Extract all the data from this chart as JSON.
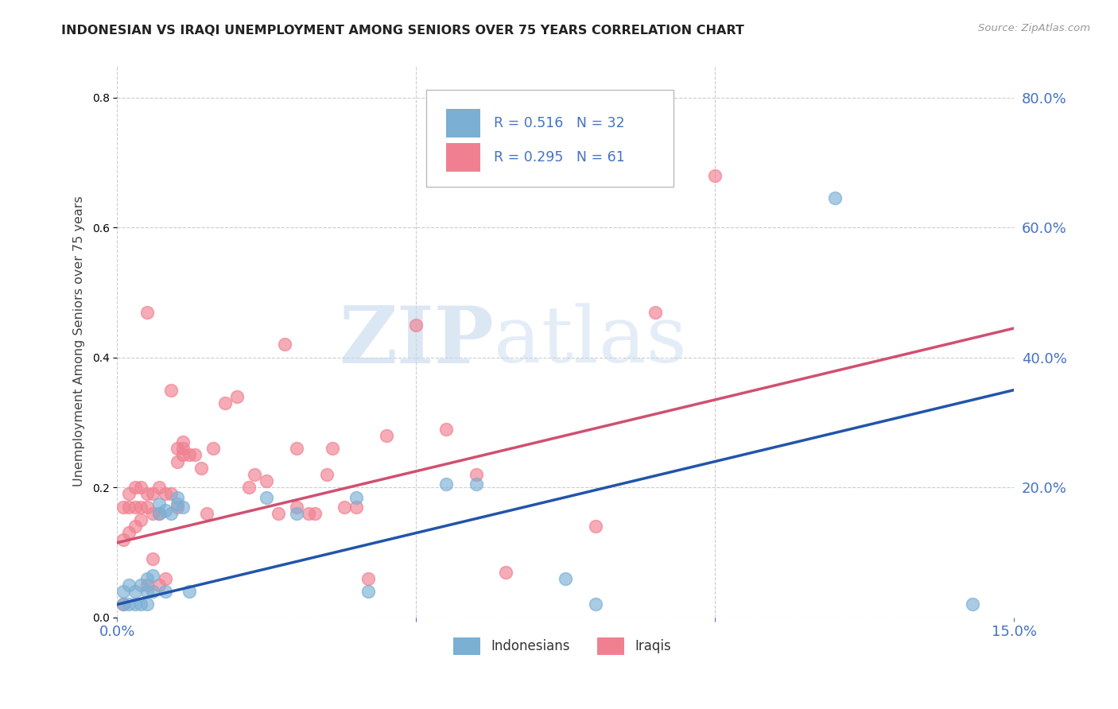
{
  "title": "INDONESIAN VS IRAQI UNEMPLOYMENT AMONG SENIORS OVER 75 YEARS CORRELATION CHART",
  "source": "Source: ZipAtlas.com",
  "tick_color": "#4472c4",
  "ylabel": "Unemployment Among Seniors over 75 years",
  "xlim": [
    0.0,
    0.15
  ],
  "ylim": [
    0.0,
    0.85
  ],
  "indonesian_R": "0.516",
  "indonesian_N": "32",
  "iraqi_R": "0.295",
  "iraqi_N": "61",
  "indonesian_color": "#7bafd4",
  "iraqi_color": "#f08090",
  "indonesian_line_color": "#2255aa",
  "iraqi_line_color": "#d05070",
  "watermark_zip": "ZIP",
  "watermark_atlas": "atlas",
  "indonesian_line_x": [
    0.0,
    0.15
  ],
  "indonesian_line_y": [
    0.02,
    0.35
  ],
  "iraqi_line_x": [
    0.0,
    0.15
  ],
  "iraqi_line_y": [
    0.115,
    0.445
  ],
  "indonesian_points_x": [
    0.001,
    0.001,
    0.002,
    0.002,
    0.003,
    0.003,
    0.004,
    0.004,
    0.005,
    0.005,
    0.005,
    0.006,
    0.006,
    0.007,
    0.007,
    0.008,
    0.008,
    0.009,
    0.01,
    0.01,
    0.011,
    0.012,
    0.025,
    0.03,
    0.04,
    0.042,
    0.055,
    0.06,
    0.075,
    0.08,
    0.12,
    0.143
  ],
  "indonesian_points_y": [
    0.02,
    0.04,
    0.02,
    0.05,
    0.02,
    0.04,
    0.02,
    0.05,
    0.02,
    0.04,
    0.06,
    0.04,
    0.065,
    0.16,
    0.175,
    0.04,
    0.165,
    0.16,
    0.175,
    0.185,
    0.17,
    0.04,
    0.185,
    0.16,
    0.185,
    0.04,
    0.205,
    0.205,
    0.06,
    0.02,
    0.645,
    0.02
  ],
  "iraqi_points_x": [
    0.001,
    0.001,
    0.001,
    0.002,
    0.002,
    0.002,
    0.003,
    0.003,
    0.003,
    0.004,
    0.004,
    0.004,
    0.005,
    0.005,
    0.005,
    0.005,
    0.006,
    0.006,
    0.006,
    0.007,
    0.007,
    0.007,
    0.008,
    0.008,
    0.009,
    0.009,
    0.01,
    0.01,
    0.01,
    0.011,
    0.011,
    0.011,
    0.012,
    0.013,
    0.014,
    0.015,
    0.016,
    0.018,
    0.02,
    0.022,
    0.023,
    0.025,
    0.027,
    0.028,
    0.03,
    0.03,
    0.032,
    0.033,
    0.035,
    0.036,
    0.038,
    0.04,
    0.042,
    0.045,
    0.05,
    0.055,
    0.06,
    0.065,
    0.08,
    0.09,
    0.1
  ],
  "iraqi_points_y": [
    0.02,
    0.12,
    0.17,
    0.13,
    0.17,
    0.19,
    0.14,
    0.17,
    0.2,
    0.15,
    0.17,
    0.2,
    0.05,
    0.17,
    0.19,
    0.47,
    0.09,
    0.16,
    0.19,
    0.05,
    0.16,
    0.2,
    0.06,
    0.19,
    0.19,
    0.35,
    0.17,
    0.24,
    0.26,
    0.25,
    0.26,
    0.27,
    0.25,
    0.25,
    0.23,
    0.16,
    0.26,
    0.33,
    0.34,
    0.2,
    0.22,
    0.21,
    0.16,
    0.42,
    0.17,
    0.26,
    0.16,
    0.16,
    0.22,
    0.26,
    0.17,
    0.17,
    0.06,
    0.28,
    0.45,
    0.29,
    0.22,
    0.07,
    0.14,
    0.47,
    0.68
  ]
}
